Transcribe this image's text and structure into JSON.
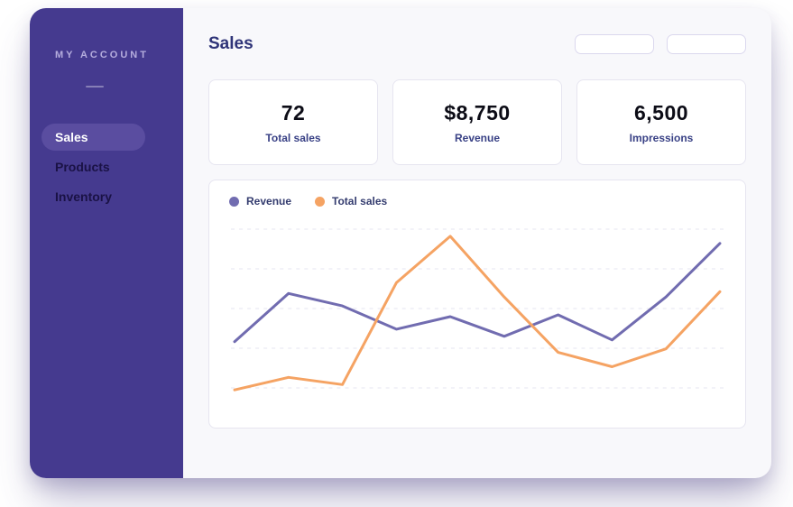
{
  "sidebar": {
    "account_label": "MY ACCOUNT",
    "items": [
      {
        "label": "Sales",
        "active": true
      },
      {
        "label": "Products",
        "active": false
      },
      {
        "label": "Inventory",
        "active": false
      }
    ]
  },
  "header": {
    "title": "Sales",
    "pill_buttons": [
      {
        "label": ""
      },
      {
        "label": ""
      }
    ]
  },
  "stats": [
    {
      "value": "72",
      "label": "Total sales"
    },
    {
      "value": "$8,750",
      "label": "Revenue"
    },
    {
      "value": "6,500",
      "label": "Impressions"
    }
  ],
  "chart_data": {
    "type": "line",
    "title": "",
    "xlabel": "",
    "ylabel": "",
    "x": [
      1,
      2,
      3,
      4,
      5,
      6,
      7,
      8,
      9,
      10
    ],
    "series": [
      {
        "name": "Revenue",
        "color": "#716CB0",
        "values": [
          37,
          64,
          57,
          44,
          51,
          40,
          52,
          38,
          62,
          92
        ]
      },
      {
        "name": "Total sales",
        "color": "#F5A363",
        "values": [
          10,
          17,
          13,
          70,
          96,
          62,
          31,
          23,
          33,
          65
        ]
      }
    ],
    "ylim": [
      0,
      100
    ],
    "grid": "horizontal-dashed",
    "gridline_count": 5,
    "legend_position": "top-left",
    "axes_visible": false
  },
  "colors": {
    "sidebar_bg": "#453A8F",
    "sidebar_active_bg": "#5A4DA0",
    "heading_navy": "#2F3478",
    "main_bg": "#F8F8FB",
    "card_border": "#E6E5F0",
    "revenue_line": "#716CB0",
    "total_sales_line": "#F5A363"
  }
}
